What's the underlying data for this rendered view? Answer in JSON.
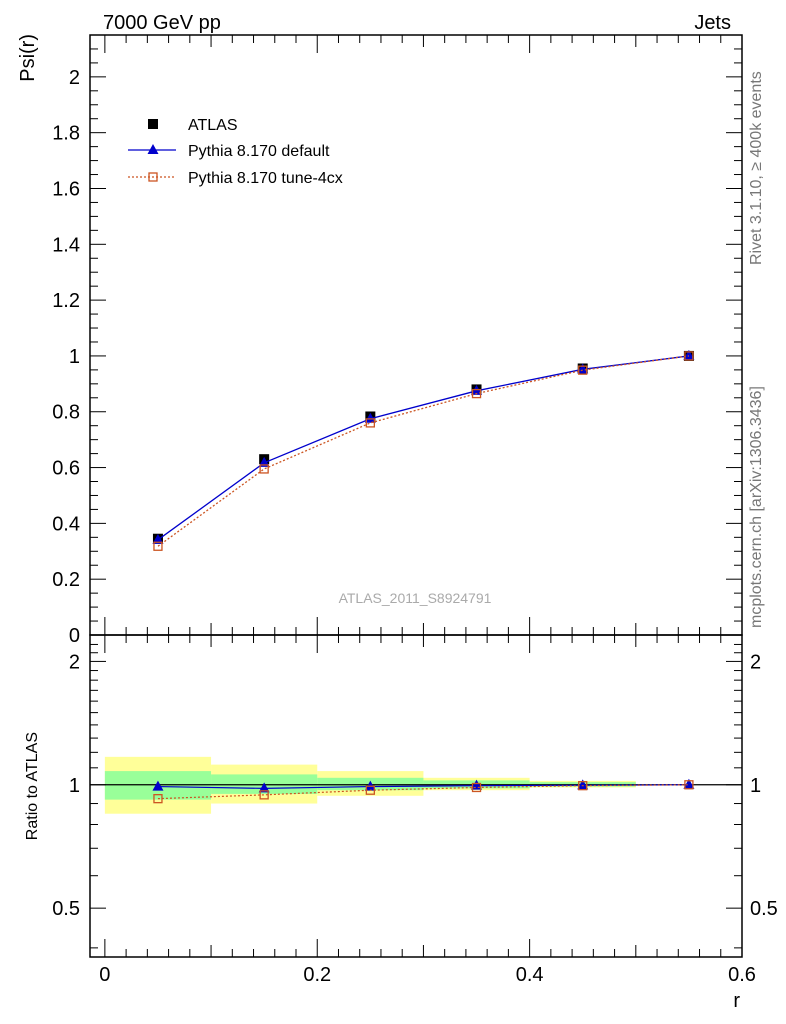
{
  "header": {
    "left": "7000 GeV pp",
    "right": "Jets"
  },
  "side": {
    "rivet": "Rivet 3.1.10, ≥ 400k events",
    "mcplots": "mcplots.cern.ch [arXiv:1306.3436]"
  },
  "watermark": "ATLAS_2011_S8924791",
  "chart_data": [
    {
      "type": "line",
      "title": "",
      "ylabel": "Psi(r)",
      "xlabel": "r",
      "xlim": [
        -0.014,
        0.6
      ],
      "ylim": [
        0,
        2.15
      ],
      "y_ticks": [
        0,
        0.2,
        0.4,
        0.6,
        0.8,
        1,
        1.2,
        1.4,
        1.6,
        1.8,
        2
      ],
      "y_tick_labels": [
        "0",
        "0.2",
        "0.4",
        "0.6",
        "0.8",
        "1",
        "1.2",
        "1.4",
        "1.6",
        "1.8",
        "2"
      ],
      "legend_position": "top-left",
      "series": [
        {
          "name": "ATLAS",
          "color": "#000000",
          "marker": "filled-square",
          "x": [
            0.05,
            0.15,
            0.25,
            0.35,
            0.45,
            0.55
          ],
          "values": [
            0.345,
            0.63,
            0.783,
            0.88,
            0.955,
            1.0
          ]
        },
        {
          "name": "Pythia 8.170 default",
          "color": "#0000cc",
          "marker": "filled-triangle",
          "x": [
            0.05,
            0.15,
            0.25,
            0.35,
            0.45,
            0.55
          ],
          "values": [
            0.341,
            0.617,
            0.775,
            0.875,
            0.952,
            1.0
          ]
        },
        {
          "name": "Pythia 8.170 tune-4cx",
          "color": "#cc5522",
          "marker": "open-square",
          "x": [
            0.05,
            0.15,
            0.25,
            0.35,
            0.45,
            0.55
          ],
          "values": [
            0.318,
            0.595,
            0.76,
            0.865,
            0.949,
            1.0
          ]
        }
      ]
    },
    {
      "type": "line",
      "title": "",
      "ylabel": "Ratio to ATLAS",
      "xlabel": "r",
      "xlim": [
        -0.014,
        0.6
      ],
      "x_ticks": [
        0,
        0.2,
        0.4,
        0.6
      ],
      "x_tick_labels": [
        "0",
        "0.2",
        "0.4",
        "0.6"
      ],
      "ylim": [
        0.38,
        2.32
      ],
      "y_scale": "log",
      "y_ticks": [
        0.5,
        1,
        2
      ],
      "y_tick_labels": [
        "0.5",
        "1",
        "2"
      ],
      "reference": 1,
      "uncertainty_bands": {
        "bin_edges": [
          0,
          0.1,
          0.2,
          0.3,
          0.4,
          0.5
        ],
        "inner": [
          [
            0.92,
            1.08
          ],
          [
            0.95,
            1.06
          ],
          [
            0.97,
            1.04
          ],
          [
            0.98,
            1.025
          ],
          [
            0.99,
            1.015
          ]
        ],
        "outer": [
          [
            0.85,
            1.17
          ],
          [
            0.9,
            1.12
          ],
          [
            0.94,
            1.08
          ],
          [
            0.97,
            1.04
          ],
          [
            0.985,
            1.022
          ]
        ],
        "inner_color": "#99ff99",
        "outer_color": "#ffff99"
      },
      "series": [
        {
          "name": "Pythia 8.170 default",
          "color": "#0000cc",
          "marker": "filled-triangle",
          "x": [
            0.05,
            0.15,
            0.25,
            0.35,
            0.45,
            0.55
          ],
          "values": [
            0.99,
            0.98,
            0.99,
            0.995,
            0.997,
            1.0
          ]
        },
        {
          "name": "Pythia 8.170 tune-4cx",
          "color": "#cc5522",
          "marker": "open-square",
          "x": [
            0.05,
            0.15,
            0.25,
            0.35,
            0.45,
            0.55
          ],
          "values": [
            0.925,
            0.945,
            0.97,
            0.985,
            0.995,
            1.0
          ]
        }
      ]
    }
  ]
}
